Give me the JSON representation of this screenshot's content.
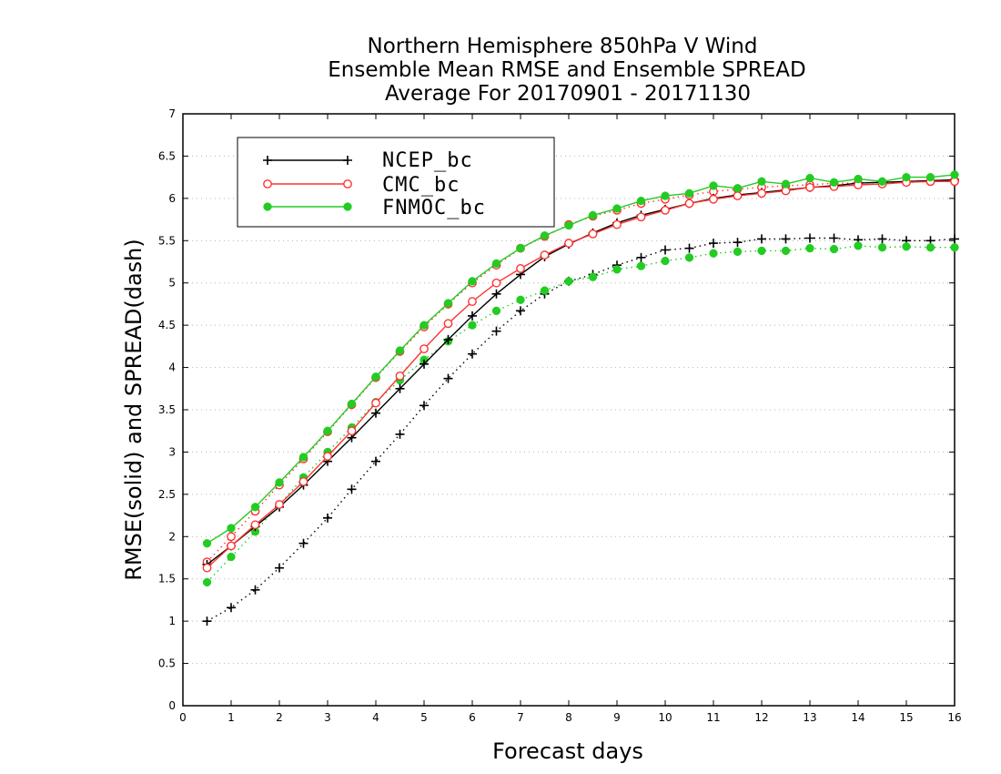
{
  "chart_data": {
    "type": "line",
    "title": [
      "Northern Hemisphere 850hPa V Wind",
      "Ensemble Mean RMSE and Ensemble SPREAD",
      "Average For 20170901 - 20171130"
    ],
    "xlabel": "Forecast days",
    "ylabel": "RMSE(solid) and SPREAD(dash)",
    "xlim": [
      0,
      16
    ],
    "ylim": [
      0,
      7
    ],
    "xticks": [
      0,
      1,
      2,
      3,
      4,
      5,
      6,
      7,
      8,
      9,
      10,
      11,
      12,
      13,
      14,
      15,
      16
    ],
    "yticks": [
      0,
      0.5,
      1,
      1.5,
      2,
      2.5,
      3,
      3.5,
      4,
      4.5,
      5,
      5.5,
      6,
      6.5,
      7
    ],
    "ytick_labels": [
      "0",
      "0.5",
      "1",
      "1.5",
      "2",
      "2.5",
      "3",
      "3.5",
      "4",
      "4.5",
      "5",
      "5.5",
      "6",
      "6.5",
      "7"
    ],
    "grid": "horizontal dotted",
    "legend_position": "top-left",
    "x": [
      0.5,
      1,
      1.5,
      2,
      2.5,
      3,
      3.5,
      4,
      4.5,
      5,
      5.5,
      6,
      6.5,
      7,
      7.5,
      8,
      8.5,
      9,
      9.5,
      10,
      10.5,
      11,
      11.5,
      12,
      12.5,
      13,
      13.5,
      14,
      14.5,
      15,
      15.5,
      16
    ],
    "series": [
      {
        "name": "NCEP_bc",
        "color": "#000000",
        "marker": "plus",
        "rmse": [
          1.67,
          1.89,
          2.12,
          2.35,
          2.61,
          2.89,
          3.17,
          3.46,
          3.75,
          4.04,
          4.33,
          4.61,
          4.87,
          5.1,
          5.31,
          5.46,
          5.59,
          5.71,
          5.8,
          5.87,
          5.94,
          6.0,
          6.04,
          6.07,
          6.1,
          6.13,
          6.15,
          6.18,
          6.19,
          6.2,
          6.21,
          6.22
        ],
        "spread": [
          1.0,
          1.16,
          1.37,
          1.63,
          1.92,
          2.22,
          2.56,
          2.89,
          3.21,
          3.55,
          3.87,
          4.16,
          4.43,
          4.67,
          4.87,
          5.02,
          5.1,
          5.21,
          5.3,
          5.39,
          5.41,
          5.47,
          5.48,
          5.52,
          5.52,
          5.53,
          5.53,
          5.51,
          5.52,
          5.5,
          5.5,
          5.52
        ]
      },
      {
        "name": "CMC_bc",
        "color": "#ff3333",
        "marker": "open-circle",
        "rmse": [
          1.63,
          1.89,
          2.14,
          2.38,
          2.65,
          2.95,
          3.25,
          3.58,
          3.9,
          4.22,
          4.52,
          4.78,
          5.0,
          5.17,
          5.33,
          5.47,
          5.58,
          5.69,
          5.78,
          5.86,
          5.94,
          5.99,
          6.03,
          6.06,
          6.09,
          6.13,
          6.14,
          6.16,
          6.17,
          6.19,
          6.2,
          6.2
        ],
        "spread": [
          1.7,
          2.0,
          2.3,
          2.61,
          2.92,
          3.24,
          3.56,
          3.88,
          4.19,
          4.48,
          4.75,
          5.0,
          5.21,
          5.41,
          5.55,
          5.69,
          5.79,
          5.86,
          5.94,
          5.99,
          6.04,
          6.08,
          6.11,
          6.13,
          6.15,
          6.16,
          6.18,
          6.18,
          6.19,
          6.19,
          6.2,
          6.21
        ]
      },
      {
        "name": "FNMOC_bc",
        "color": "#22cc22",
        "marker": "filled-circle",
        "rmse": [
          1.92,
          2.1,
          2.35,
          2.64,
          2.94,
          3.25,
          3.57,
          3.89,
          4.2,
          4.5,
          4.76,
          5.02,
          5.23,
          5.41,
          5.56,
          5.68,
          5.8,
          5.88,
          5.97,
          6.03,
          6.06,
          6.15,
          6.12,
          6.2,
          6.17,
          6.24,
          6.19,
          6.23,
          6.2,
          6.25,
          6.25,
          6.28
        ],
        "spread": [
          1.46,
          1.76,
          2.06,
          2.38,
          2.7,
          3.0,
          3.29,
          3.59,
          3.85,
          4.09,
          4.31,
          4.5,
          4.67,
          4.8,
          4.91,
          5.02,
          5.07,
          5.16,
          5.2,
          5.26,
          5.3,
          5.35,
          5.37,
          5.38,
          5.38,
          5.41,
          5.4,
          5.44,
          5.42,
          5.43,
          5.42,
          5.42
        ]
      }
    ]
  }
}
